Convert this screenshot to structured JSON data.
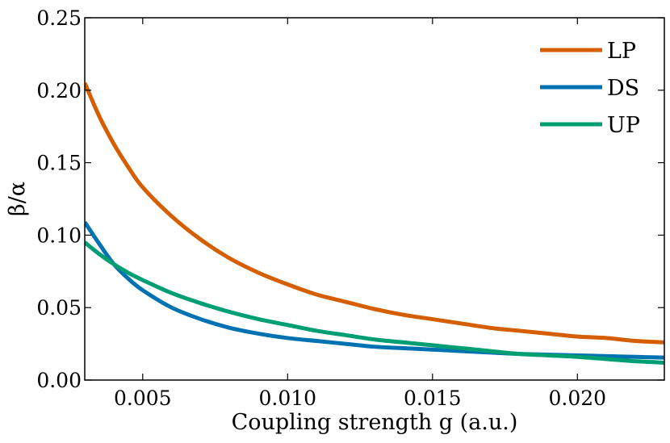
{
  "chart_data": {
    "type": "line",
    "title": "",
    "xlabel": "Coupling strength g (a.u.)",
    "ylabel": "β/α",
    "xlim": [
      0.003,
      0.023
    ],
    "ylim": [
      0.0,
      0.25
    ],
    "grid": false,
    "legend_position": "top-right",
    "xticks": [
      {
        "value": 0.005,
        "label": "0.005"
      },
      {
        "value": 0.01,
        "label": "0.010"
      },
      {
        "value": 0.015,
        "label": "0.015"
      },
      {
        "value": 0.02,
        "label": "0.020"
      }
    ],
    "yticks": [
      {
        "value": 0.0,
        "label": "0.00"
      },
      {
        "value": 0.05,
        "label": "0.05"
      },
      {
        "value": 0.1,
        "label": "0.10"
      },
      {
        "value": 0.15,
        "label": "0.15"
      },
      {
        "value": 0.2,
        "label": "0.20"
      },
      {
        "value": 0.25,
        "label": "0.25"
      }
    ],
    "series": [
      {
        "name": "LP",
        "color": "#d55e00",
        "x": [
          0.003,
          0.0035,
          0.004,
          0.0045,
          0.005,
          0.006,
          0.007,
          0.008,
          0.009,
          0.01,
          0.011,
          0.012,
          0.013,
          0.014,
          0.015,
          0.016,
          0.017,
          0.018,
          0.019,
          0.02,
          0.021,
          0.022,
          0.023
        ],
        "y": [
          0.205,
          0.182,
          0.163,
          0.147,
          0.133,
          0.113,
          0.097,
          0.084,
          0.074,
          0.066,
          0.059,
          0.054,
          0.049,
          0.045,
          0.042,
          0.039,
          0.036,
          0.034,
          0.032,
          0.03,
          0.029,
          0.027,
          0.026
        ]
      },
      {
        "name": "DS",
        "color": "#0072b2",
        "x": [
          0.003,
          0.0035,
          0.004,
          0.0045,
          0.005,
          0.006,
          0.007,
          0.008,
          0.009,
          0.01,
          0.011,
          0.012,
          0.013,
          0.014,
          0.015,
          0.016,
          0.017,
          0.018,
          0.019,
          0.02,
          0.021,
          0.022,
          0.023
        ],
        "y": [
          0.109,
          0.094,
          0.08,
          0.07,
          0.062,
          0.05,
          0.042,
          0.036,
          0.032,
          0.029,
          0.027,
          0.025,
          0.023,
          0.022,
          0.021,
          0.02,
          0.019,
          0.018,
          0.0175,
          0.017,
          0.0165,
          0.016,
          0.0155
        ]
      },
      {
        "name": "UP",
        "color": "#009e73",
        "x": [
          0.003,
          0.0035,
          0.004,
          0.0045,
          0.005,
          0.006,
          0.007,
          0.008,
          0.009,
          0.01,
          0.011,
          0.012,
          0.013,
          0.014,
          0.015,
          0.016,
          0.017,
          0.018,
          0.019,
          0.02,
          0.021,
          0.022,
          0.023
        ],
        "y": [
          0.095,
          0.087,
          0.08,
          0.074,
          0.069,
          0.06,
          0.053,
          0.047,
          0.042,
          0.038,
          0.034,
          0.031,
          0.028,
          0.026,
          0.024,
          0.022,
          0.02,
          0.018,
          0.017,
          0.016,
          0.0145,
          0.013,
          0.012
        ]
      }
    ]
  }
}
